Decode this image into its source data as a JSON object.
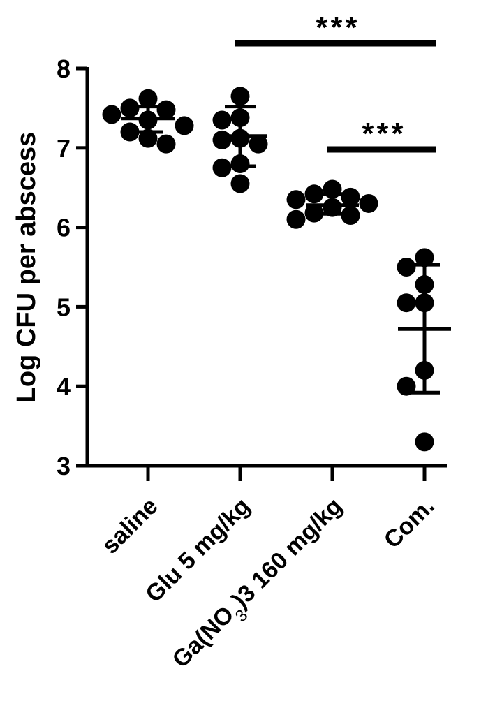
{
  "chart_data": {
    "type": "scatter",
    "ylabel": "Log CFU per abscess",
    "ylim": [
      3,
      8
    ],
    "yticks": [
      3,
      4,
      5,
      6,
      7,
      8
    ],
    "categories": [
      {
        "label": "saline",
        "sub": "",
        "after": ""
      },
      {
        "label": "Glu 5 mg/kg",
        "sub": "",
        "after": ""
      },
      {
        "label": "Ga(NO",
        "sub": "3",
        "after": ")3 160 mg/kg"
      },
      {
        "label": "Com.",
        "sub": "",
        "after": ""
      }
    ],
    "groups": [
      {
        "points": [
          7.62,
          7.5,
          7.48,
          7.42,
          7.35,
          7.28,
          7.2,
          7.12,
          7.05
        ],
        "mean": 7.37,
        "sd_low": 7.2,
        "sd_high": 7.52
      },
      {
        "points": [
          7.65,
          7.38,
          7.35,
          7.12,
          7.1,
          7.05,
          6.8,
          6.75,
          6.55
        ],
        "mean": 7.15,
        "sd_low": 6.77,
        "sd_high": 7.52
      },
      {
        "points": [
          6.48,
          6.42,
          6.38,
          6.35,
          6.3,
          6.25,
          6.18,
          6.15,
          6.1
        ],
        "mean": 6.28,
        "sd_low": 6.17,
        "sd_high": 6.42
      },
      {
        "points": [
          5.62,
          5.5,
          5.28,
          5.05,
          5.05,
          4.2,
          4.0,
          3.3
        ],
        "mean": 4.72,
        "sd_low": 3.92,
        "sd_high": 5.53
      }
    ],
    "significance": [
      {
        "from": 1,
        "to": 3,
        "label": "***"
      },
      {
        "from": 2,
        "to": 3,
        "label": "***"
      }
    ]
  }
}
